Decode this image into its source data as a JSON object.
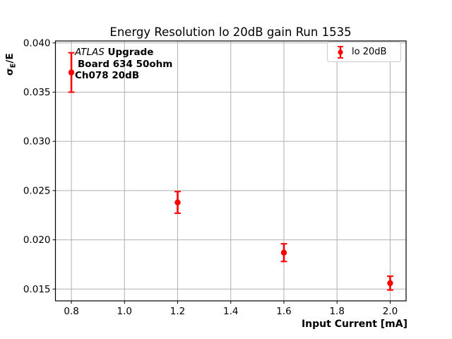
{
  "figure": {
    "background": "#ffffff"
  },
  "annotation": {
    "line1_italic": "ATLAS",
    "line1_bold": " Upgrade",
    "line2": "Board 634 50ohm",
    "line3": "Ch078 20dB"
  },
  "ylabel_parts": {
    "sigma": "σ",
    "subscript": "E",
    "rest": "/E"
  },
  "legend": {
    "label": "lo 20dB",
    "marker_color": "#ff0000",
    "position": "upper right"
  },
  "chart_data": {
    "type": "scatter",
    "title": "Energy Resolution lo 20dB gain Run 1535",
    "xlabel": "Input Current [mA]",
    "ylabel": "σ_E/E",
    "xlim": [
      0.74,
      2.06
    ],
    "ylim": [
      0.0138,
      0.0402
    ],
    "xticks": [
      0.8,
      1.0,
      1.2,
      1.4,
      1.6,
      1.8,
      2.0
    ],
    "yticks": [
      0.015,
      0.02,
      0.025,
      0.03,
      0.035,
      0.04
    ],
    "grid": true,
    "grid_color": "#b0b0b0",
    "spine_color": "#000000",
    "legend_position": "upper right",
    "series": [
      {
        "name": "lo 20dB",
        "color": "#ff0000",
        "marker": "o",
        "linestyle": "none",
        "x": [
          0.8,
          1.2,
          1.6,
          2.0
        ],
        "y": [
          0.037,
          0.0238,
          0.0187,
          0.0156
        ],
        "yerr": [
          0.002,
          0.0011,
          0.0009,
          0.0007
        ]
      }
    ],
    "annotations": [
      "ATLAS Upgrade",
      "Board 634 50ohm",
      "Ch078 20dB"
    ]
  }
}
